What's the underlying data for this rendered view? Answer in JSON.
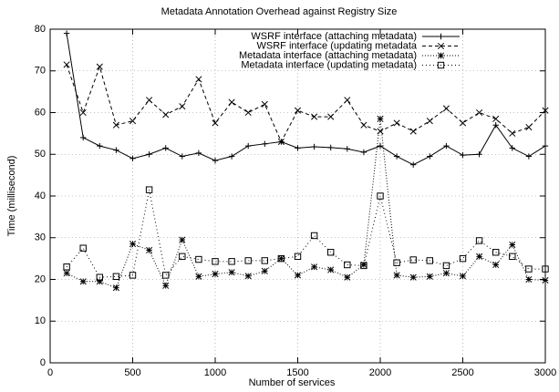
{
  "chart_data": {
    "type": "line",
    "title": "Metadata Annotation Overhead against Registry Size",
    "xlabel": "Number of services",
    "ylabel": "Time (millisecond)",
    "x": [
      100,
      200,
      300,
      400,
      500,
      600,
      700,
      800,
      900,
      1000,
      1100,
      1200,
      1300,
      1400,
      1500,
      1600,
      1700,
      1800,
      1900,
      2000,
      2100,
      2200,
      2300,
      2400,
      2500,
      2600,
      2700,
      2800,
      2900,
      3000
    ],
    "series": [
      {
        "name": "WSRF interface (attaching metadata)",
        "color": "#000000",
        "marker": "plus",
        "dash": "none",
        "values": [
          79,
          54,
          52,
          51,
          49,
          50,
          51.5,
          49.5,
          50.3,
          48.5,
          49.5,
          52,
          52.5,
          53,
          51.5,
          51.8,
          51.6,
          51.3,
          50.5,
          52,
          49.5,
          47.5,
          49.5,
          52,
          49.8,
          50,
          57,
          51.5,
          49.5,
          52
        ]
      },
      {
        "name": "WSRF interface (updating metadata",
        "color": "#000000",
        "marker": "cross",
        "dash": "4,3",
        "values": [
          71.5,
          60,
          71,
          57,
          58,
          63,
          59.5,
          61.5,
          68,
          57.5,
          62.5,
          60,
          62,
          53,
          60.5,
          59,
          59,
          63,
          57,
          55.5,
          57.5,
          55.5,
          58,
          61,
          57.5,
          60,
          58.5,
          55,
          56.5,
          60.5
        ]
      },
      {
        "name": "Metadata interface (attaching metadata)",
        "color": "#000000",
        "marker": "star",
        "dash": "1,2",
        "values": [
          21.5,
          19.5,
          19.5,
          18,
          28.5,
          27,
          18.5,
          29.5,
          20.7,
          21.3,
          21.7,
          20.8,
          22,
          25,
          21,
          23,
          22.3,
          20.5,
          23.5,
          58.5,
          21,
          20.5,
          20.7,
          21.5,
          20.8,
          25.5,
          23.5,
          28.3,
          20,
          19.8
        ]
      },
      {
        "name": "Metadata interface (updating metadata)",
        "color": "#000000",
        "marker": "square",
        "dash": "1,3",
        "values": [
          23,
          27.5,
          20.5,
          20.7,
          21,
          41.5,
          21,
          25.5,
          24.8,
          24.3,
          24.3,
          24.5,
          24.5,
          25,
          25.5,
          30.5,
          26.5,
          23.5,
          23.3,
          40,
          24,
          24.7,
          24.5,
          23.3,
          25,
          29.3,
          26.5,
          25.5,
          22.5,
          22.5
        ]
      }
    ],
    "xlim": [
      0,
      3000
    ],
    "xticks": [
      0,
      500,
      1000,
      1500,
      2000,
      2500,
      3000
    ],
    "ylim": [
      0,
      80
    ],
    "yticks": [
      0,
      10,
      20,
      30,
      40,
      50,
      60,
      70,
      80
    ],
    "grid": true,
    "legend": "top-right"
  }
}
